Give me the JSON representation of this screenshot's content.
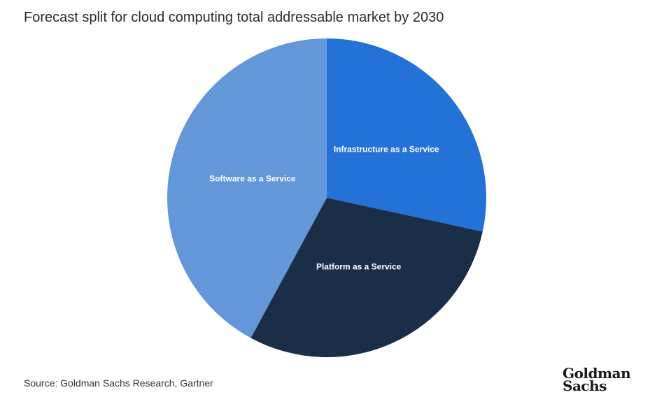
{
  "title": "Forecast split for cloud computing total addressable market by 2030",
  "source": "Source: Goldman Sachs Research, Gartner",
  "logo": {
    "line1": "Goldman",
    "line2": "Sachs"
  },
  "chart_data": {
    "type": "pie",
    "title": "Forecast split for cloud computing total addressable market by 2030",
    "legend": "none",
    "slices": [
      {
        "label": "Infrastructure as a Service",
        "value": 28.4,
        "color": "#2472d8"
      },
      {
        "label": "Platform as a Service",
        "value": 29.5,
        "color": "#1a2e48"
      },
      {
        "label": "Software as a Service",
        "value": 42.1,
        "color": "#6397d9"
      }
    ]
  }
}
